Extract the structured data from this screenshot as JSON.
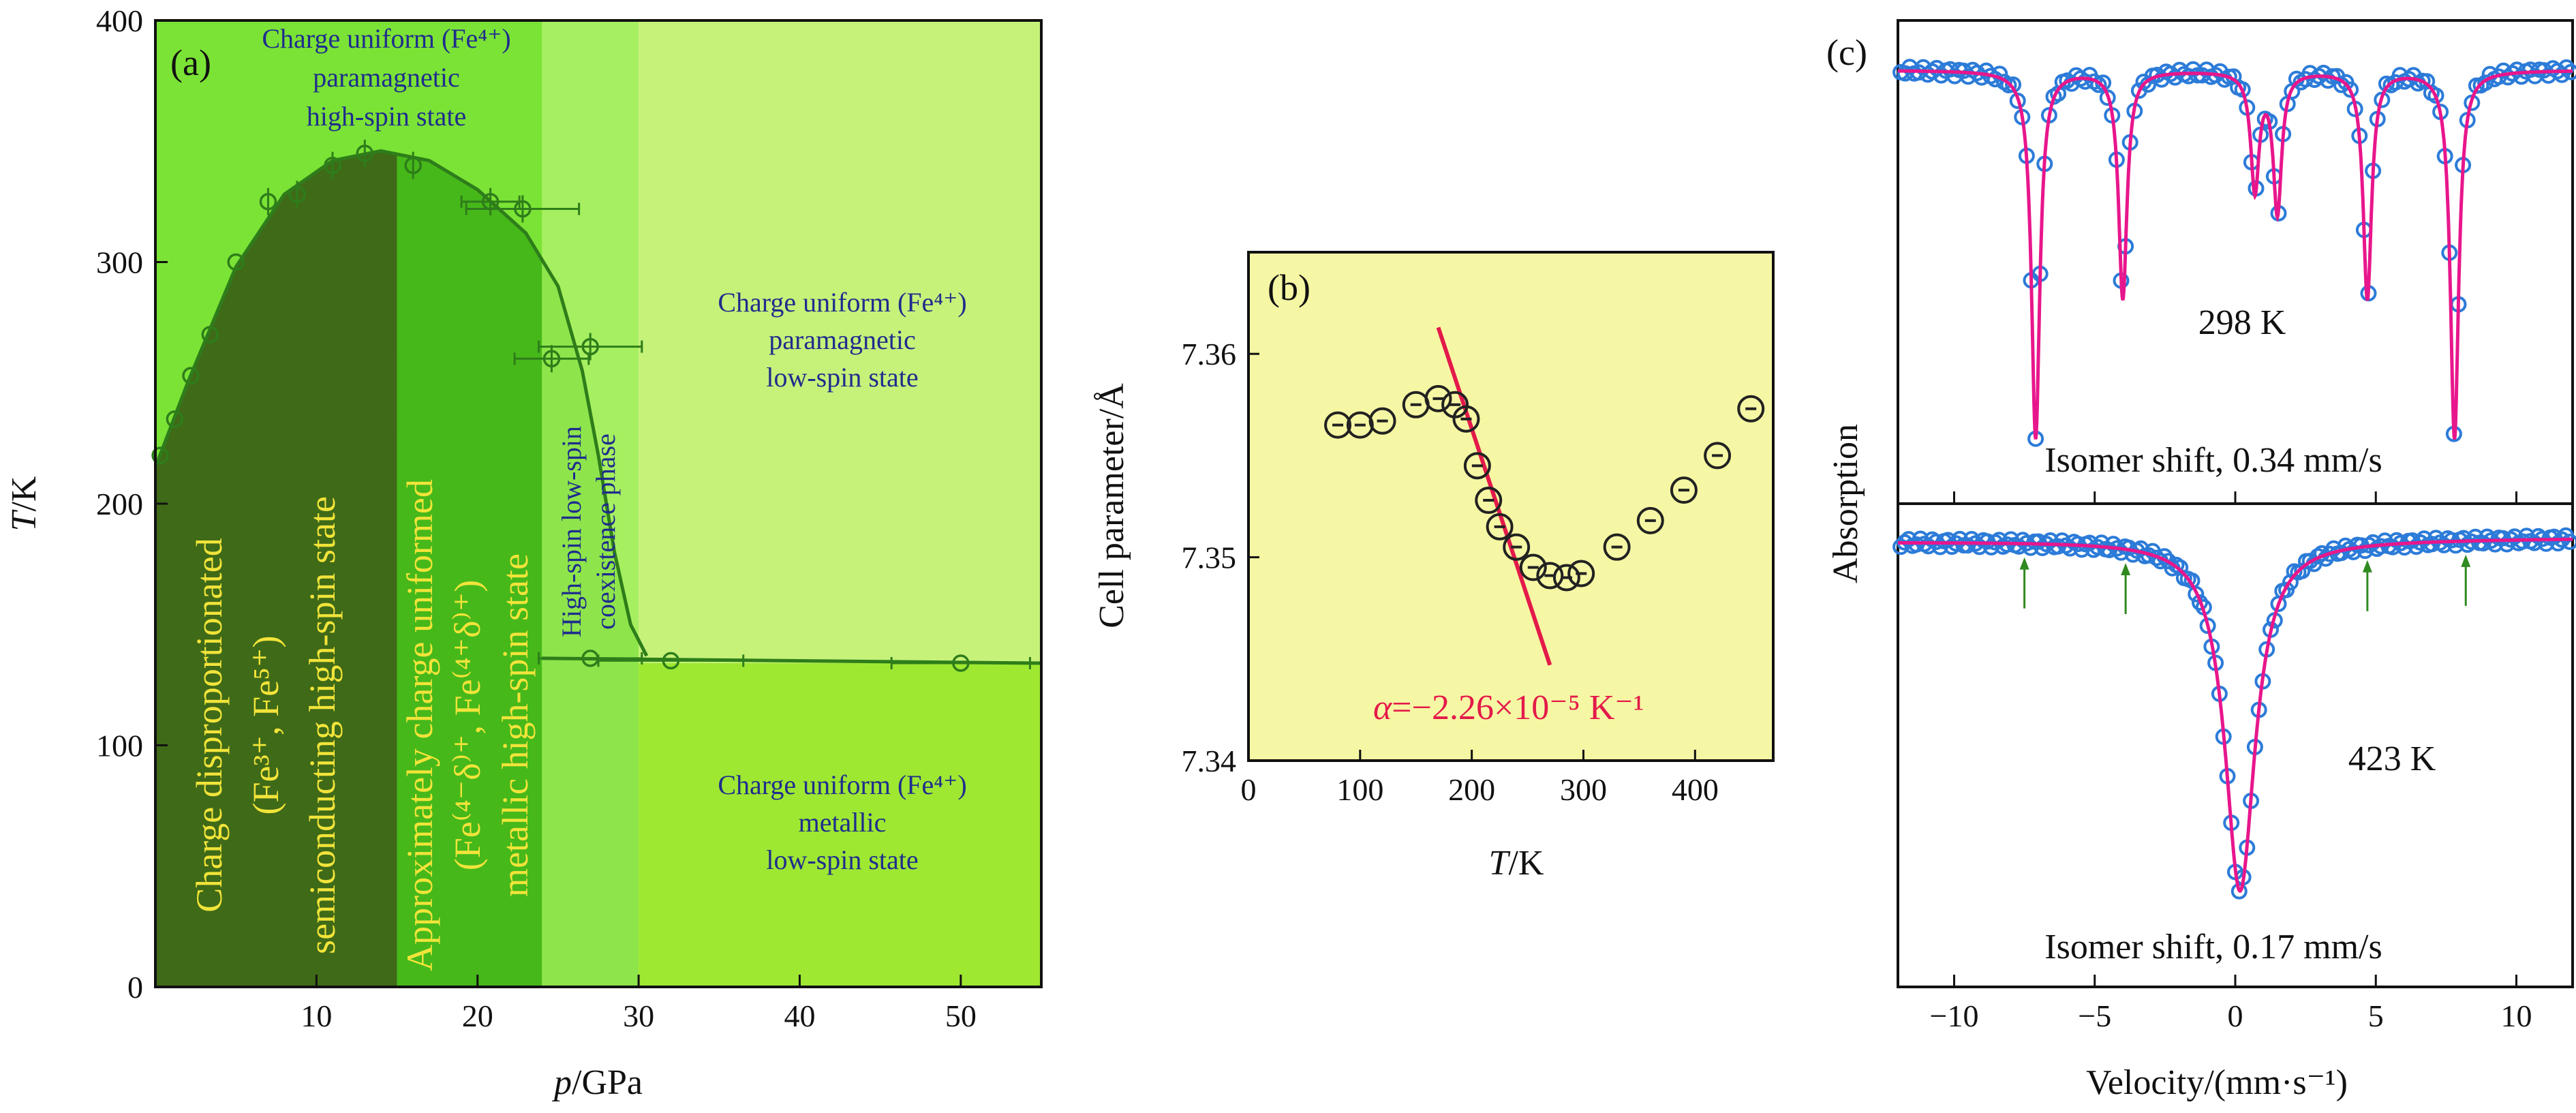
{
  "colors": {
    "bg_left": "#7be335",
    "bg_right": "#c6f27a",
    "bg_coexist": "#a6ef60",
    "bg_lower_right": "#9ee832",
    "region_dark": "#3f6a17",
    "region_mid": "#46b81a",
    "region_coexist": "#8ee54b",
    "curve": "#2e7d1a",
    "yellow_text": "#f2e43a",
    "blue_text": "#1f2d8c",
    "panel_b_bg": "#f6f7a4",
    "fit_red": "#e31a4a",
    "moss_marker": "#2c7bd8",
    "moss_fit": "#e8168c",
    "arrow_green": "#2f8a1f"
  },
  "chart_data": [
    {
      "panel": "(a)",
      "type": "scatter",
      "xlabel_italic": "p",
      "xlabel_rest": "/GPa",
      "ylabel_italic": "T",
      "ylabel_rest": "/K",
      "xlim": [
        0,
        55
      ],
      "ylim": [
        0,
        400
      ],
      "xticks": [
        "10",
        "20",
        "30",
        "40",
        "50"
      ],
      "yticks": [
        "0",
        "100",
        "200",
        "300",
        "400"
      ],
      "boundary_points": [
        {
          "x": 0.3,
          "y": 220
        },
        {
          "x": 1.2,
          "y": 235
        },
        {
          "x": 2.2,
          "y": 253
        },
        {
          "x": 3.4,
          "y": 270
        },
        {
          "x": 5.0,
          "y": 300
        },
        {
          "x": 7.0,
          "y": 325
        },
        {
          "x": 8.8,
          "y": 328
        },
        {
          "x": 11.0,
          "y": 340
        },
        {
          "x": 13.0,
          "y": 345
        },
        {
          "x": 16.0,
          "y": 340
        },
        {
          "x": 20.8,
          "y": 325
        },
        {
          "x": 22.8,
          "y": 322
        },
        {
          "x": 24.6,
          "y": 260
        },
        {
          "x": 27.0,
          "y": 265
        },
        {
          "x": 27.0,
          "y": 136
        },
        {
          "x": 32.0,
          "y": 135
        },
        {
          "x": 50.0,
          "y": 134
        }
      ],
      "curve_upper": [
        {
          "x": 0,
          "y": 215
        },
        {
          "x": 2,
          "y": 250
        },
        {
          "x": 5,
          "y": 298
        },
        {
          "x": 8,
          "y": 328
        },
        {
          "x": 11,
          "y": 342
        },
        {
          "x": 14,
          "y": 346
        },
        {
          "x": 17,
          "y": 342
        },
        {
          "x": 20,
          "y": 330
        },
        {
          "x": 23,
          "y": 312
        },
        {
          "x": 25,
          "y": 290
        },
        {
          "x": 26.5,
          "y": 255
        },
        {
          "x": 27.5,
          "y": 220
        },
        {
          "x": 28.5,
          "y": 180
        },
        {
          "x": 29.5,
          "y": 150
        },
        {
          "x": 30.5,
          "y": 137
        }
      ],
      "curve_lower": [
        {
          "x": 24,
          "y": 136
        },
        {
          "x": 55,
          "y": 134
        }
      ],
      "region_boundaries_p": [
        15,
        24,
        30
      ],
      "region_labels": {
        "r1": [
          "Charge disproportionated",
          "(Fe³⁺, Fe⁵⁺)",
          "semiconducting high-spin state"
        ],
        "r2": [
          "Approximately charge uniformed",
          "(Fe⁽⁴⁻δ⁾⁺, Fe⁽⁴⁺δ⁾⁺)",
          "metallic high-spin state"
        ],
        "r3": [
          "High-spin low-spin",
          "coexistence phase"
        ],
        "top": [
          "Charge uniform (Fe⁴⁺)",
          "paramagnetic",
          "high-spin state"
        ],
        "upper_right": [
          "Charge uniform (Fe⁴⁺)",
          "paramagnetic",
          "low-spin state"
        ],
        "lower_right": [
          "Charge uniform (Fe⁴⁺)",
          "metallic",
          "low-spin state"
        ]
      }
    },
    {
      "panel": "(b)",
      "type": "scatter",
      "xlabel_italic": "T",
      "xlabel_rest": "/K",
      "ylabel": "Cell parameter/Å",
      "xlim": [
        0,
        470
      ],
      "ylim": [
        7.34,
        7.365
      ],
      "xticks": [
        "0",
        "100",
        "200",
        "300",
        "400"
      ],
      "yticks": [
        "7.34",
        "7.35",
        "7.36"
      ],
      "points": [
        {
          "x": 80,
          "y": 7.3565
        },
        {
          "x": 100,
          "y": 7.3565
        },
        {
          "x": 120,
          "y": 7.3567
        },
        {
          "x": 150,
          "y": 7.3575
        },
        {
          "x": 170,
          "y": 7.3578
        },
        {
          "x": 185,
          "y": 7.3575
        },
        {
          "x": 195,
          "y": 7.3568
        },
        {
          "x": 205,
          "y": 7.3545
        },
        {
          "x": 215,
          "y": 7.3528
        },
        {
          "x": 225,
          "y": 7.3515
        },
        {
          "x": 240,
          "y": 7.3505
        },
        {
          "x": 255,
          "y": 7.3495
        },
        {
          "x": 270,
          "y": 7.3491
        },
        {
          "x": 285,
          "y": 7.349
        },
        {
          "x": 298,
          "y": 7.3492
        },
        {
          "x": 330,
          "y": 7.3505
        },
        {
          "x": 360,
          "y": 7.3518
        },
        {
          "x": 390,
          "y": 7.3533
        },
        {
          "x": 420,
          "y": 7.355
        },
        {
          "x": 450,
          "y": 7.3573
        }
      ],
      "fit_line": [
        {
          "x": 170,
          "y": 7.3613
        },
        {
          "x": 270,
          "y": 7.3447
        }
      ],
      "annotation_greek": "α",
      "annotation_rest": "=−2.26×10⁻⁵ K⁻¹"
    },
    {
      "panel": "(c)",
      "type": "line",
      "xlabel": "Velocity/(mm·s⁻¹)",
      "ylabel": "Absorption",
      "xlim": [
        -12,
        12
      ],
      "xticks": [
        "−10",
        "−5",
        "0",
        "5",
        "10"
      ],
      "spectra": [
        {
          "name": "298 K",
          "caption": "Isomer shift, 0.34 mm/s",
          "line_positions": [
            -7.1,
            -4.0,
            0.7,
            1.5,
            4.7,
            7.8
          ],
          "line_depths": [
            1.0,
            0.62,
            0.32,
            0.38,
            0.62,
            1.0
          ],
          "line_halfwidth": 0.18
        },
        {
          "name": "423 K",
          "caption": "Isomer shift, 0.17 mm/s",
          "line_positions": [
            0.17
          ],
          "line_depths": [
            1.0
          ],
          "line_halfwidth": 0.65,
          "arrows": [
            -7.5,
            -3.9,
            4.7,
            8.2
          ]
        }
      ]
    }
  ]
}
